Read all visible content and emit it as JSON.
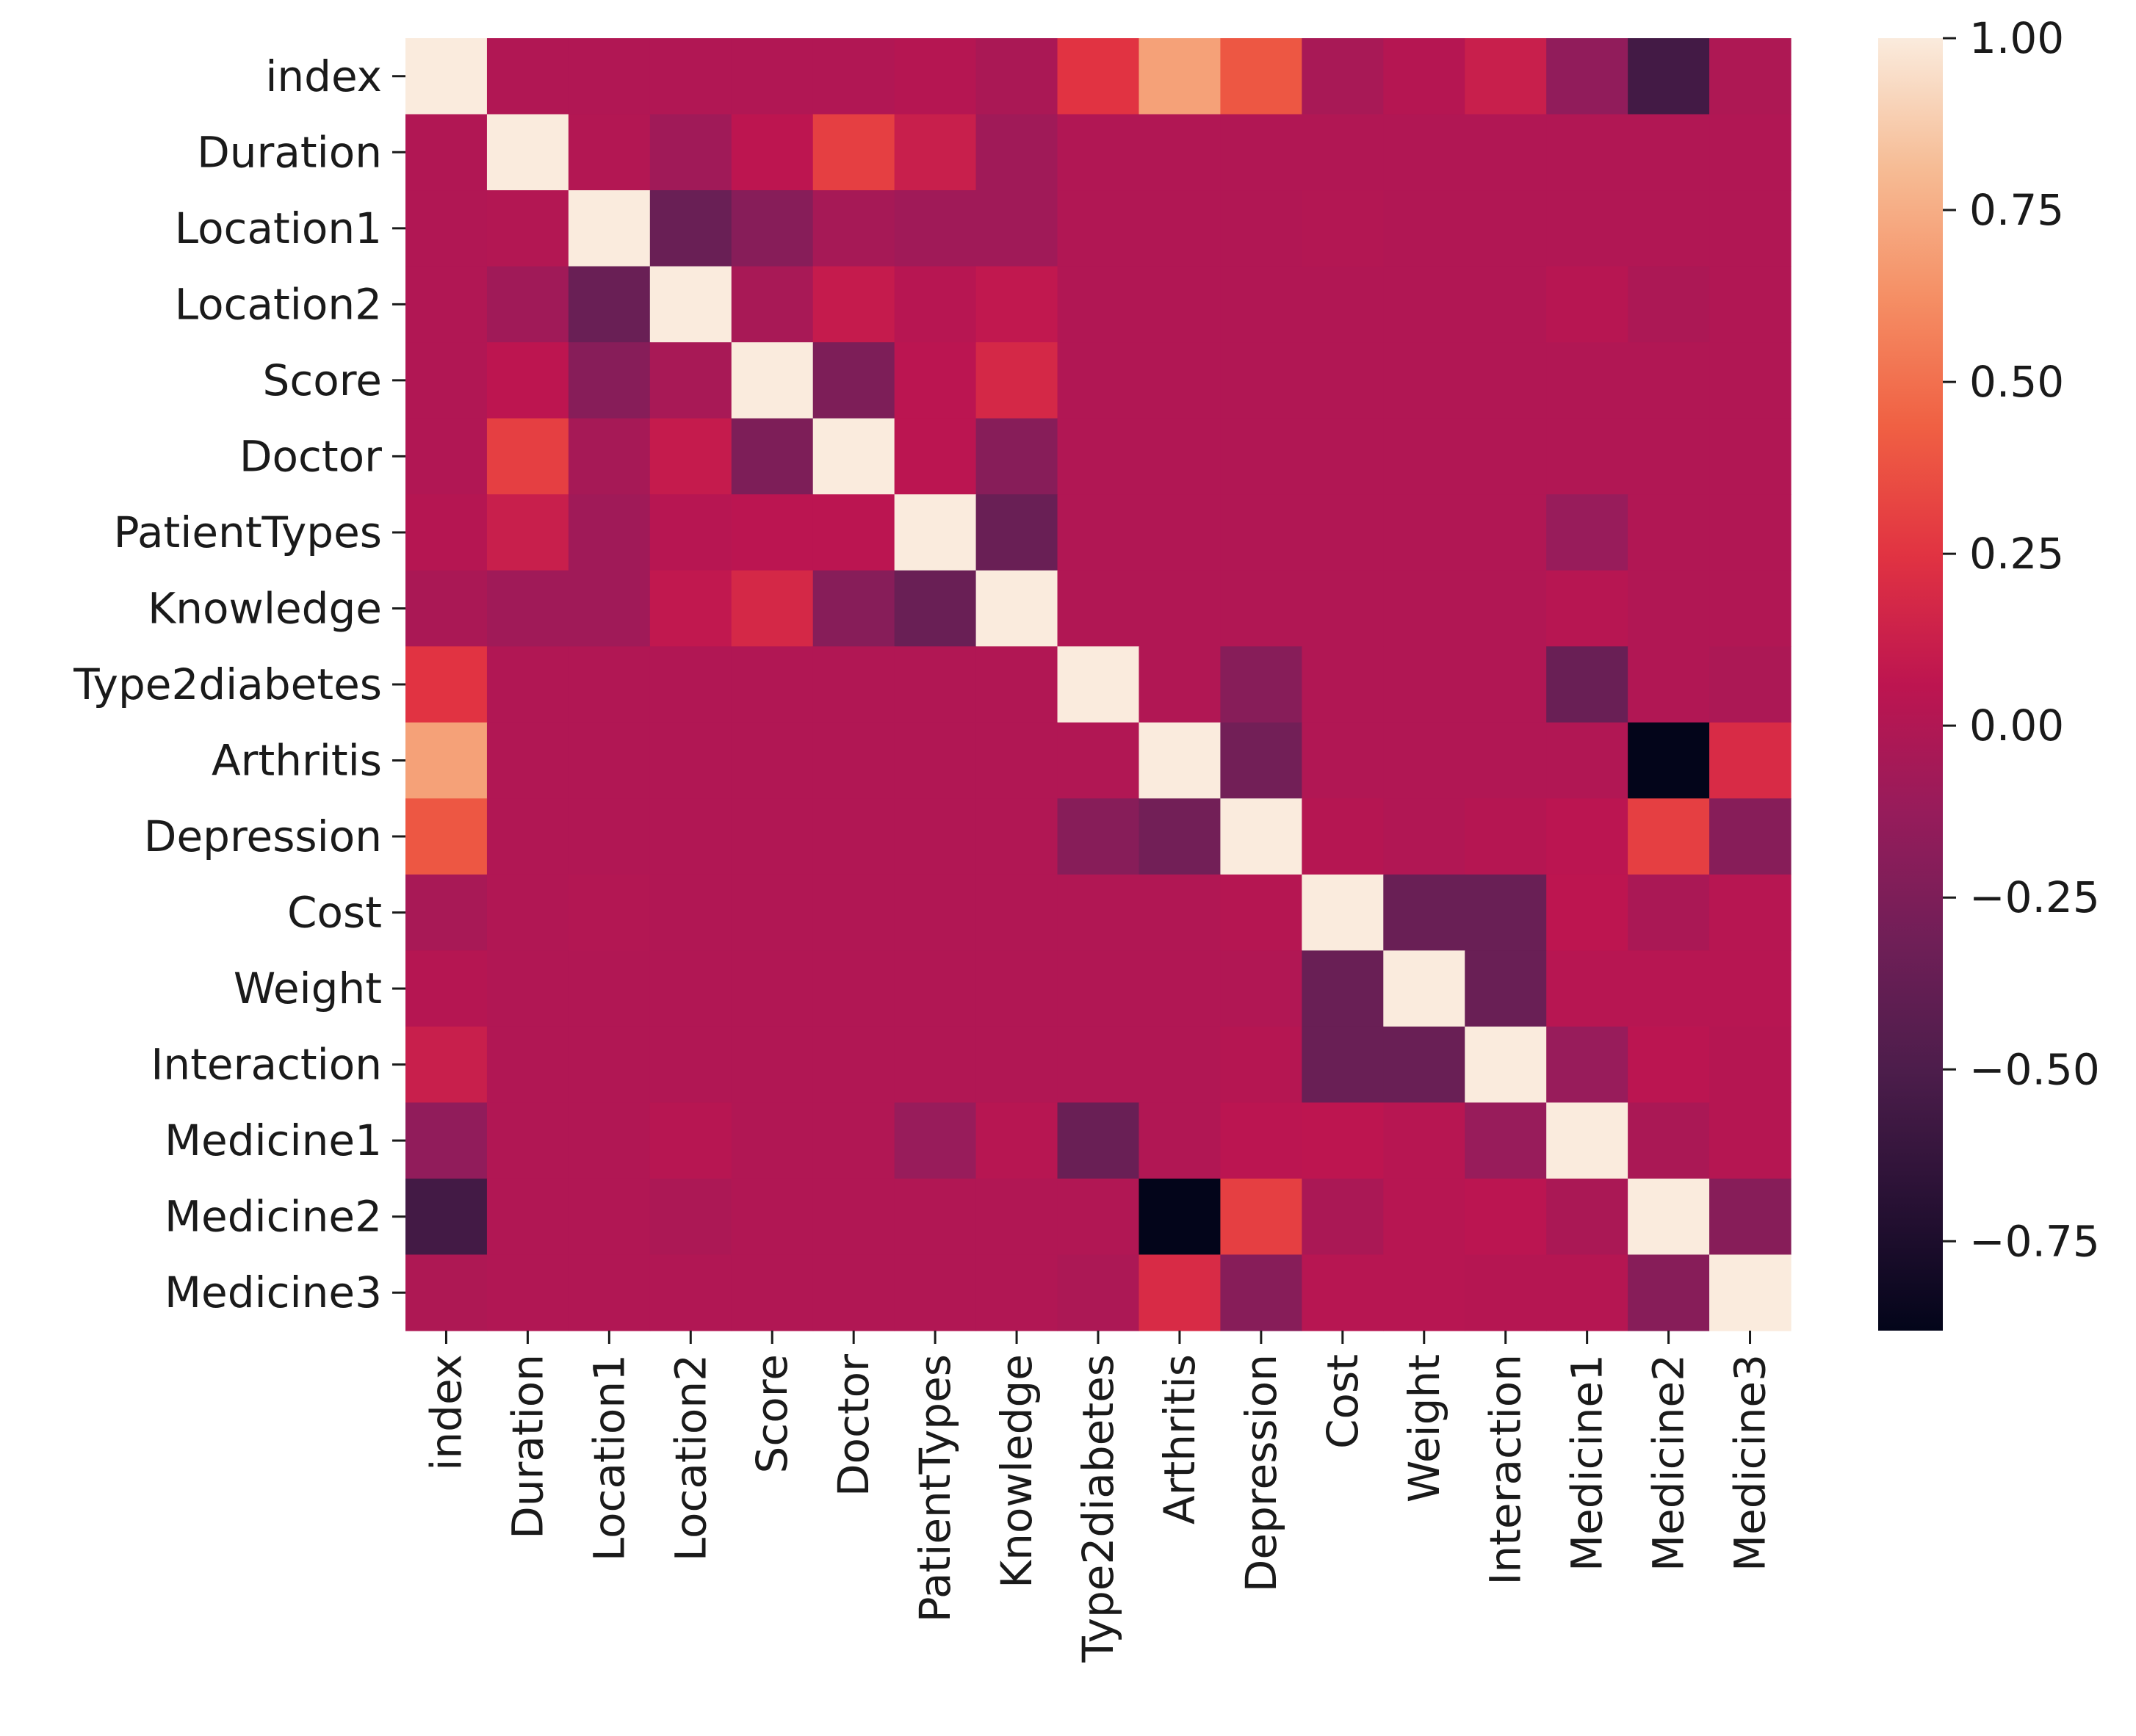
{
  "chart_data": {
    "type": "heatmap",
    "title": "",
    "xlabel": "",
    "ylabel": "",
    "variables": [
      "index",
      "Duration",
      "Location1",
      "Location2",
      "Score",
      "Doctor",
      "PatientTypes",
      "Knowledge",
      "Type2diabetes",
      "Arthritis",
      "Depression",
      "Cost",
      "Weight",
      "Interaction",
      "Medicine1",
      "Medicine2",
      "Medicine3"
    ],
    "matrix": [
      [
        1.0,
        0.0,
        0.0,
        0.0,
        0.0,
        0.0,
        0.02,
        -0.03,
        0.25,
        0.7,
        0.4,
        -0.04,
        0.02,
        0.12,
        -0.15,
        -0.55,
        -0.01
      ],
      [
        0.0,
        1.0,
        0.01,
        -0.08,
        0.06,
        0.3,
        0.12,
        -0.08,
        0.0,
        0.0,
        0.0,
        0.0,
        0.0,
        0.0,
        0.0,
        0.0,
        0.0
      ],
      [
        0.0,
        0.01,
        1.0,
        -0.35,
        -0.2,
        -0.05,
        -0.08,
        -0.08,
        0.0,
        0.0,
        0.0,
        0.01,
        0.0,
        0.0,
        0.0,
        0.0,
        0.0
      ],
      [
        0.0,
        -0.08,
        -0.35,
        1.0,
        -0.04,
        0.1,
        0.03,
        0.08,
        0.0,
        0.0,
        0.0,
        0.0,
        0.0,
        0.0,
        0.03,
        -0.02,
        0.0
      ],
      [
        0.0,
        0.06,
        -0.2,
        -0.04,
        1.0,
        -0.25,
        0.05,
        0.18,
        0.0,
        0.0,
        0.0,
        0.0,
        0.0,
        0.0,
        0.0,
        0.0,
        0.0
      ],
      [
        0.0,
        0.3,
        -0.05,
        0.1,
        -0.25,
        1.0,
        0.05,
        -0.2,
        0.0,
        0.0,
        0.0,
        0.0,
        0.0,
        0.0,
        0.0,
        0.0,
        0.0
      ],
      [
        0.02,
        0.12,
        -0.08,
        0.03,
        0.05,
        0.05,
        1.0,
        -0.35,
        0.0,
        0.0,
        0.0,
        0.0,
        0.0,
        0.0,
        -0.12,
        0.0,
        0.0
      ],
      [
        -0.03,
        -0.08,
        -0.08,
        0.08,
        0.18,
        -0.2,
        -0.35,
        1.0,
        0.0,
        0.0,
        0.0,
        0.0,
        0.0,
        0.0,
        0.03,
        0.0,
        0.0
      ],
      [
        0.25,
        0.0,
        0.0,
        0.0,
        0.0,
        0.0,
        0.0,
        0.0,
        1.0,
        0.0,
        -0.2,
        0.0,
        0.0,
        0.0,
        -0.35,
        0.0,
        -0.02
      ],
      [
        0.7,
        0.0,
        0.0,
        0.0,
        0.0,
        0.0,
        0.0,
        0.0,
        0.0,
        1.0,
        -0.3,
        0.0,
        0.0,
        0.0,
        0.0,
        -0.88,
        0.2
      ],
      [
        0.4,
        0.0,
        0.0,
        0.0,
        0.0,
        0.0,
        0.0,
        0.0,
        -0.2,
        -0.3,
        1.0,
        0.02,
        0.0,
        0.02,
        0.05,
        0.3,
        -0.2
      ],
      [
        -0.04,
        0.0,
        0.01,
        0.0,
        0.0,
        0.0,
        0.0,
        0.0,
        0.0,
        0.0,
        0.02,
        1.0,
        -0.35,
        -0.35,
        0.06,
        -0.03,
        0.03
      ],
      [
        0.02,
        0.0,
        0.0,
        0.0,
        0.0,
        0.0,
        0.0,
        0.0,
        0.0,
        0.0,
        0.0,
        -0.35,
        1.0,
        -0.35,
        0.03,
        0.03,
        0.03
      ],
      [
        0.12,
        0.0,
        0.0,
        0.0,
        0.0,
        0.0,
        0.0,
        0.0,
        0.0,
        0.0,
        0.02,
        -0.35,
        -0.35,
        1.0,
        -0.12,
        0.05,
        0.02
      ],
      [
        -0.15,
        0.0,
        0.0,
        0.03,
        0.0,
        0.0,
        -0.12,
        0.03,
        -0.35,
        0.0,
        0.05,
        0.06,
        0.03,
        -0.12,
        1.0,
        -0.03,
        0.02
      ],
      [
        -0.55,
        0.0,
        0.0,
        -0.02,
        0.0,
        0.0,
        0.0,
        0.0,
        0.0,
        -0.88,
        0.3,
        -0.03,
        0.03,
        0.05,
        -0.03,
        1.0,
        -0.2
      ],
      [
        -0.01,
        0.0,
        0.0,
        0.0,
        0.0,
        0.0,
        0.0,
        0.0,
        -0.02,
        0.2,
        -0.2,
        0.03,
        0.03,
        0.02,
        0.02,
        -0.2,
        1.0
      ]
    ],
    "vmin": -0.88,
    "vmax": 1.0,
    "colormap": "rocket",
    "colorbar": {
      "ticks": [
        1.0,
        0.75,
        0.5,
        0.25,
        0.0,
        -0.25,
        -0.5,
        -0.75
      ],
      "tick_labels": [
        "1.00",
        "0.75",
        "0.50",
        "0.25",
        "0.00",
        "−0.25",
        "−0.50",
        "−0.75"
      ]
    },
    "legend_position": "right"
  }
}
